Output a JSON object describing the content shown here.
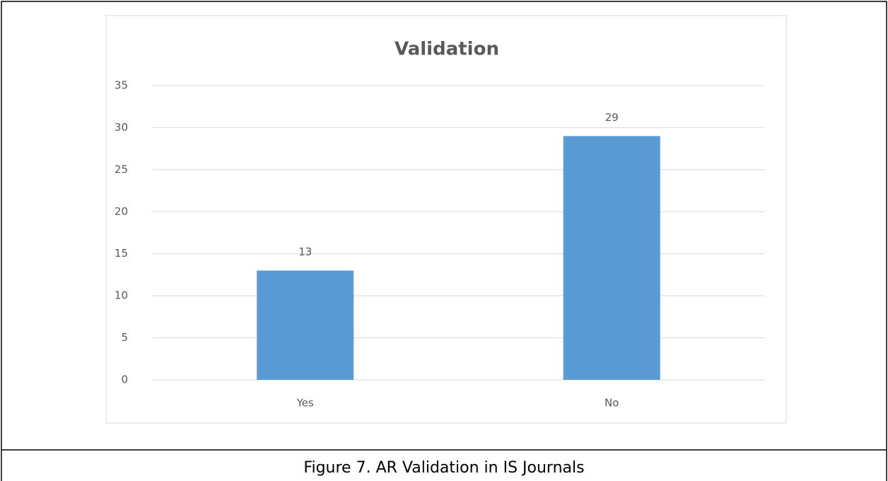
{
  "chart_data": {
    "type": "bar",
    "title": "Validation",
    "categories": [
      "Yes",
      "No"
    ],
    "values": [
      13,
      29
    ],
    "color": "#5b9bd5",
    "ylim": [
      0,
      35
    ],
    "yticks": [
      0,
      5,
      10,
      15,
      20,
      25,
      30,
      35
    ],
    "grid": true,
    "data_labels": true
  },
  "caption": "Figure 7. AR Validation in IS Journals"
}
